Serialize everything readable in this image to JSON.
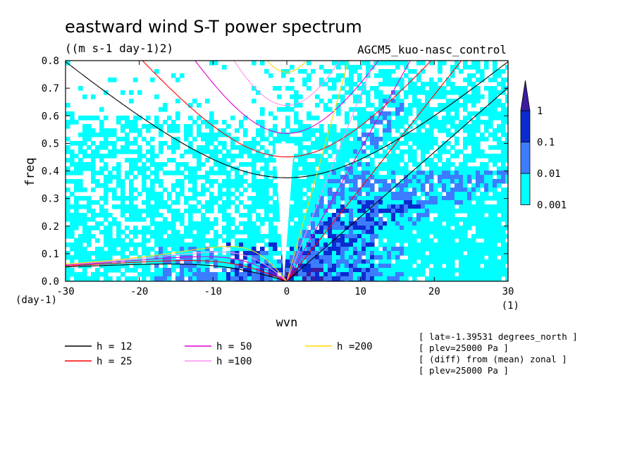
{
  "chart_data": {
    "type": "heatmap",
    "title": "eastward wind S-T power spectrum",
    "units": "((m s-1 day-1)2)",
    "model": "AGCM5_kuo-nasc_control",
    "xlabel": "wvn",
    "ylabel": "freq",
    "x_unit": "(1)",
    "y_unit": "(day-1)",
    "xlim": [
      -30,
      30
    ],
    "ylim": [
      0,
      0.8
    ],
    "x_ticks": [
      "-30",
      "-20",
      "-10",
      "0",
      "10",
      "20",
      "30"
    ],
    "y_ticks": [
      "0.0",
      "0.1",
      "0.2",
      "0.3",
      "0.4",
      "0.5",
      "0.6",
      "0.7",
      "0.8"
    ],
    "colorbar": {
      "labels": [
        "0.001",
        "0.01",
        "0.1",
        "1"
      ],
      "colors": [
        "#00ffff",
        "#3c7cff",
        "#0a2bd0",
        "#3c1ca0"
      ]
    },
    "background_colors": {
      "fill": "#00ffff",
      "mid": "#3c7cff",
      "high": "#0a2bd0",
      "peak": "#3c1ca0"
    },
    "dispersion_curves": [
      {
        "name": "h = 12",
        "h": 12,
        "color": "#000000"
      },
      {
        "name": "h = 25",
        "h": 25,
        "color": "#ff0000"
      },
      {
        "name": "h = 50",
        "h": 50,
        "color": "#e000d0"
      },
      {
        "name": "h =100",
        "h": 100,
        "color": "#ff90f0"
      },
      {
        "name": "h =200",
        "h": 200,
        "color": "#ffd800"
      }
    ],
    "info_lines": [
      "[ lat=-1.39531 degrees_north ]",
      "[ plev=25000 Pa ]",
      "[ (diff) from (mean) zonal ]",
      "[ plev=25000 Pa ]"
    ]
  }
}
